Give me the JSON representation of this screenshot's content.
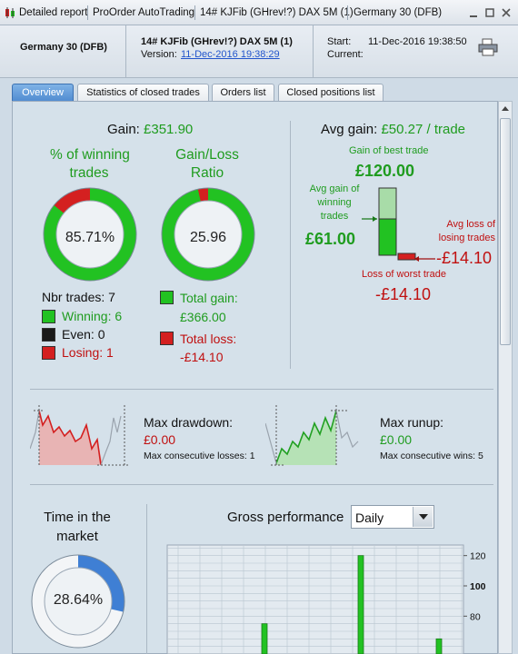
{
  "titlebar": {
    "items": [
      "Detailed report",
      "ProOrder AutoTrading",
      "14# KJFib (GHrev!?) DAX 5M (1)",
      "Germany 30 (DFB)"
    ]
  },
  "header": {
    "instrument": "Germany 30 (DFB)",
    "system_name": "14# KJFib (GHrev!?) DAX 5M (1)",
    "version_label": "Version:",
    "version_value": "11-Dec-2016 19:38:29",
    "start_label": "Start:",
    "start_value": "11-Dec-2016 19:38:50",
    "current_label": "Current:",
    "current_value": ""
  },
  "tabs": [
    {
      "label": "Overview",
      "active": true
    },
    {
      "label": "Statistics of closed trades",
      "active": false
    },
    {
      "label": "Orders list",
      "active": false
    },
    {
      "label": "Closed positions list",
      "active": false
    }
  ],
  "overview": {
    "gain_label": "Gain:",
    "gain_value": "£351.90",
    "winning_title_1": "% of winning",
    "winning_title_2": "trades",
    "winning_pct": "85.71%",
    "winning_fraction": 0.8571,
    "ratio_title_1": "Gain/Loss",
    "ratio_title_2": "Ratio",
    "ratio_value": "25.96",
    "ratio_fraction": 0.963,
    "nbr_trades": "Nbr trades: 7",
    "winning": "Winning: 6",
    "even": "Even: 0",
    "losing": "Losing: 1",
    "total_gain_label": "Total gain:",
    "total_gain_value": "£366.00",
    "total_loss_label": "Total loss:",
    "total_loss_value": "-£14.10",
    "avg_gain_label": "Avg gain:",
    "avg_gain_value": "£50.27 / trade",
    "best_trade_label": "Gain of best trade",
    "best_trade_value": "£120.00",
    "avg_win_label_1": "Avg gain of",
    "avg_win_label_2": "winning",
    "avg_win_label_3": "trades",
    "avg_win_value": "£61.00",
    "avg_loss_label_1": "Avg loss of",
    "avg_loss_label_2": "losing trades",
    "avg_loss_value": "-£14.10",
    "worst_trade_label": "Loss of worst trade",
    "worst_trade_value": "-£14.10"
  },
  "drawdown": {
    "title": "Max drawdown:",
    "value": "£0.00",
    "sub": "Max consecutive losses: 1"
  },
  "runup": {
    "title": "Max runup:",
    "value": "£0.00",
    "sub": "Max consecutive wins: 5"
  },
  "time_in_market": {
    "title_1": "Time in the",
    "title_2": "market",
    "value": "28.64%",
    "fraction": 0.2864
  },
  "gross_performance": {
    "title": "Gross performance",
    "period": "Daily"
  },
  "chart_data": {
    "type": "bar",
    "title": "Gross performance",
    "y_ticks": [
      120,
      100,
      80
    ],
    "values": [
      75,
      120,
      65
    ]
  },
  "colors": {
    "green": "#22c222",
    "red": "#d42020",
    "blue": "#3f7fd4",
    "text_green": "#1f9c1f",
    "text_red": "#c01010"
  }
}
